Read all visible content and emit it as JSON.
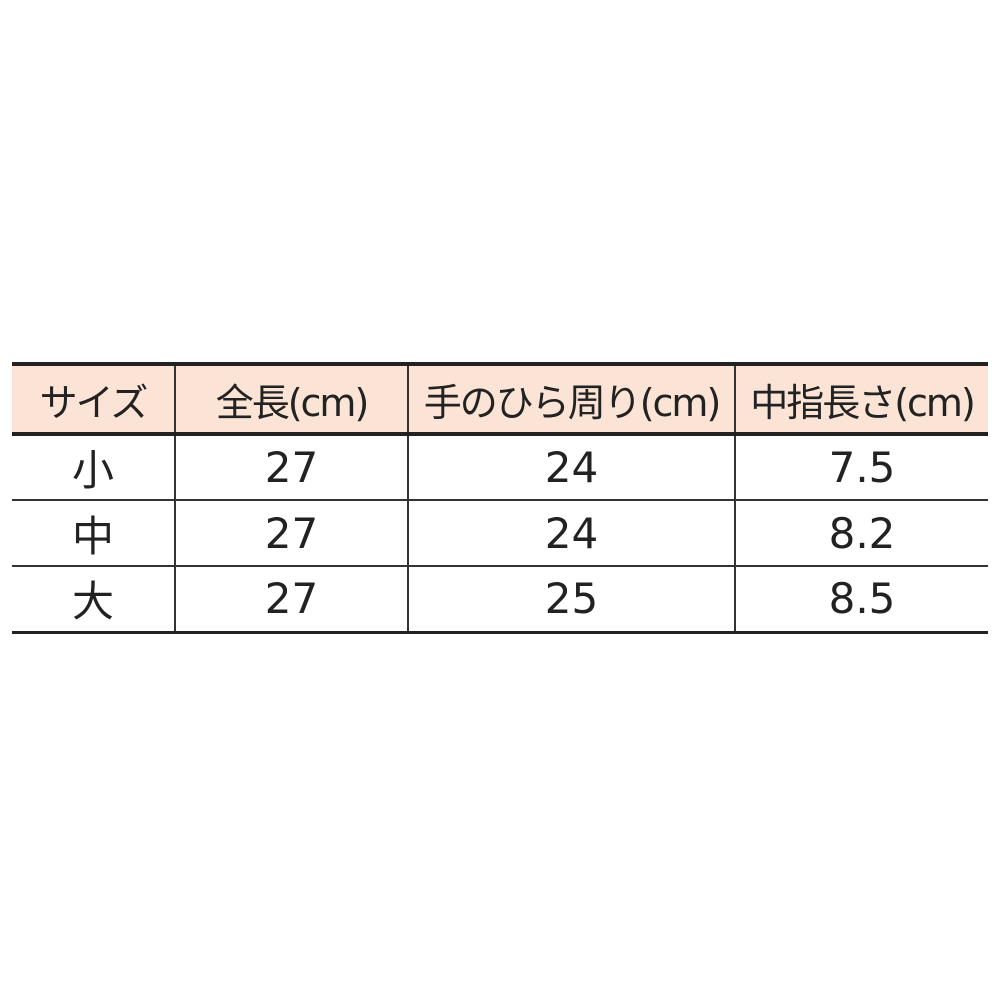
{
  "table": {
    "headers": [
      "サイズ",
      "全長(cm)",
      "手のひら周り(cm)",
      "中指長さ(cm)"
    ],
    "rows": [
      [
        "小",
        "27",
        "24",
        "7.5"
      ],
      [
        "中",
        "27",
        "24",
        "8.2"
      ],
      [
        "大",
        "27",
        "25",
        "8.5"
      ]
    ],
    "header_bg": "#fbe4d5"
  }
}
